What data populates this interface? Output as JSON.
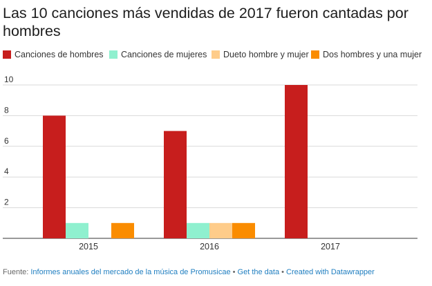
{
  "chart_data": {
    "type": "bar",
    "title": "Las 10 canciones más vendidas de 2017 fueron cantadas por hombres",
    "categories": [
      "2015",
      "2016",
      "2017"
    ],
    "series": [
      {
        "name": "Canciones de hombres",
        "color": "#c71e1d",
        "values": [
          8,
          7,
          10
        ]
      },
      {
        "name": "Canciones de mujeres",
        "color": "#8ff0cf",
        "values": [
          1,
          1,
          0
        ]
      },
      {
        "name": "Dueto hombre y mujer",
        "color": "#fecc8a",
        "values": [
          0,
          1,
          0
        ]
      },
      {
        "name": "Dos hombres y una mujer",
        "color": "#fa8c00",
        "values": [
          1,
          1,
          0
        ]
      }
    ],
    "yticks": [
      "2",
      "4",
      "6",
      "8",
      "10"
    ],
    "ylim": [
      0,
      10
    ],
    "xlabel": "",
    "ylabel": "",
    "grid": true,
    "legend_position": "top-left"
  },
  "footer": {
    "prefix": "Fuente: ",
    "source": "Informes anuales del mercado de la música de Promusicae",
    "sep1": " • ",
    "get_data": "Get the data",
    "sep2": " • ",
    "created": "Created with Datawrapper"
  }
}
